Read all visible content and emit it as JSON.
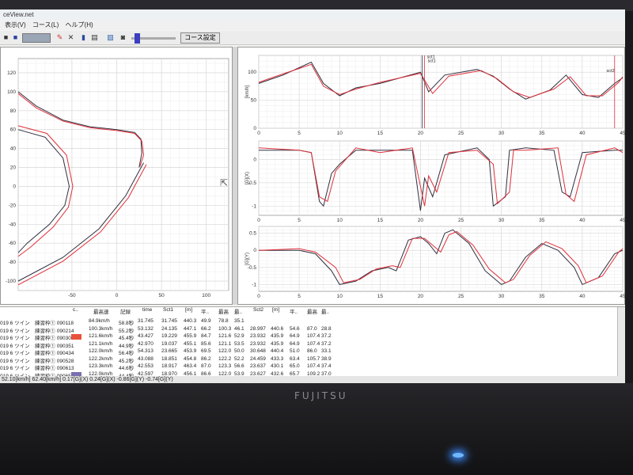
{
  "window": {
    "title": "ceView.net"
  },
  "menu": [
    "表示(V)",
    "コース(L)",
    "ヘルプ(H)",
    ""
  ],
  "toolbar": {
    "course_button": "コース設定"
  },
  "brand": "FUJITSU",
  "colors": {
    "lap_a": "#303040",
    "lap_b": "#e0303a",
    "grid": "#d4d4d4",
    "swatch_red": "#e8523a",
    "swatch_purple": "#7a6fb0"
  },
  "status": "52.10[km/h] 62.40[km/h]  0.17[G](X) 0.24[G](X)  -0.86[G](Y) -0.74[G](Y)",
  "table": {
    "headers": [
      "c..",
      "最高速",
      "記録",
      "time",
      "Sct1",
      "[m]",
      "平..",
      "最高",
      "最..",
      "Sct2",
      "[m]",
      "平..",
      "最高",
      "最.."
    ],
    "rows": [
      [
        "019 6 ツイン",
        "練習枠① 090118",
        "",
        "84.9km/h",
        "58.8秒",
        "31.745",
        "31.745",
        "440.3",
        "49.9",
        "78.8",
        "35.1",
        "",
        "",
        "",
        "",
        ""
      ],
      [
        "019 6 ツイン",
        "練習枠① 090214",
        "",
        "100.3km/h",
        "55.2秒",
        "53.132",
        "24.135",
        "447.1",
        "66.2",
        "100.3",
        "46.1",
        "28.997",
        "440.6",
        "54.6",
        "87.0",
        "28.8"
      ],
      [
        "019 6 ツイン",
        "練習枠① 090307",
        "red",
        "121.6km/h",
        "45.4秒",
        "43.427",
        "19.229",
        "455.9",
        "84.7",
        "121.6",
        "52.9",
        "23.932",
        "435.9",
        "64.9",
        "107.4",
        "37.2"
      ],
      [
        "019 6 ツイン",
        "練習枠① 090351",
        "",
        "121.1km/h",
        "44.9秒",
        "42.970",
        "19.037",
        "455.1",
        "85.6",
        "121.1",
        "53.5",
        "23.932",
        "435.9",
        "64.9",
        "107.4",
        "37.2"
      ],
      [
        "019 6 ツイン",
        "練習枠① 090434",
        "",
        "122.0km/h",
        "56.4秒",
        "54.313",
        "23.665",
        "453.9",
        "69.5",
        "122.0",
        "50.0",
        "30.648",
        "440.4",
        "51.0",
        "86.0",
        "33.1"
      ],
      [
        "019 6 ツイン",
        "練習枠① 090528",
        "",
        "122.2km/h",
        "45.2秒",
        "43.088",
        "18.851",
        "454.8",
        "86.2",
        "122.2",
        "52.2",
        "24.459",
        "433.3",
        "63.4",
        "105.7",
        "38.9"
      ],
      [
        "019 6 ツイン",
        "練習枠① 090613",
        "",
        "123.3km/h",
        "44.6秒",
        "42.553",
        "18.917",
        "463.4",
        "87.0",
        "123.3",
        "56.6",
        "23.637",
        "430.1",
        "65.0",
        "107.4",
        "37.4"
      ],
      [
        "019 6 ツイン",
        "練習枠① 090654",
        "purple",
        "122.0km/h",
        "44.4秒",
        "42.597",
        "18.970",
        "456.1",
        "86.6",
        "122.0",
        "53.9",
        "23.627",
        "432.6",
        "65.7",
        "109.2",
        "37.0"
      ]
    ]
  },
  "chart_data": [
    {
      "type": "line",
      "title": "",
      "xlabel": "",
      "ylabel": "",
      "xlim": [
        -110,
        125
      ],
      "ylim": [
        -110,
        135
      ],
      "x_ticks": [
        -50,
        0,
        50,
        100
      ],
      "y_ticks": [
        -100,
        -80,
        -60,
        -40,
        -20,
        0,
        20,
        40,
        60,
        80,
        100,
        120
      ],
      "series": [
        {
          "x": [
            -110,
            -90,
            -60,
            -30,
            0,
            20,
            27,
            28,
            25
          ],
          "y": [
            100,
            85,
            70,
            63,
            60,
            57,
            50,
            35,
            20
          ]
        },
        {
          "x": [
            -110,
            -90,
            -60,
            -30,
            0,
            20,
            28,
            30,
            26
          ],
          "y": [
            98,
            83,
            69,
            62,
            59,
            56,
            48,
            33,
            21
          ]
        },
        {
          "x": [
            -110,
            -80,
            -60,
            -53,
            -58,
            -75,
            -100,
            -110
          ],
          "y": [
            60,
            52,
            30,
            0,
            -20,
            -40,
            -60,
            -70
          ]
        },
        {
          "x": [
            -110,
            -78,
            -56,
            -49,
            -54,
            -71,
            -96,
            -110
          ],
          "y": [
            64,
            56,
            33,
            0,
            -22,
            -43,
            -64,
            -74
          ]
        },
        {
          "x": [
            -110,
            -60,
            -20,
            10,
            30
          ],
          "y": [
            -100,
            -75,
            -45,
            -10,
            25
          ]
        },
        {
          "x": [
            -110,
            -60,
            -18,
            13,
            33
          ],
          "y": [
            -104,
            -79,
            -48,
            -12,
            23
          ]
        }
      ]
    },
    {
      "type": "line",
      "title": "",
      "xlabel": "",
      "ylabel": "[km/h]",
      "xlim": [
        0,
        45
      ],
      "ylim": [
        0,
        130
      ],
      "y_ticks": [
        0,
        50,
        100
      ],
      "x_ticks": [
        0,
        5,
        10,
        15,
        20,
        25,
        30,
        35,
        40,
        45
      ],
      "annotations": [
        "sct1",
        "sct1",
        "sct2"
      ],
      "series": [
        {
          "x": [
            0,
            3,
            6.5,
            8,
            10,
            12,
            15,
            20,
            21,
            23,
            25,
            27,
            29,
            31,
            33,
            36,
            38,
            40,
            42,
            44,
            45
          ],
          "y": [
            80,
            95,
            118,
            80,
            58,
            72,
            80,
            100,
            65,
            95,
            100,
            105,
            93,
            70,
            52,
            68,
            95,
            60,
            55,
            80,
            90
          ]
        },
        {
          "x": [
            0,
            3,
            6.5,
            8,
            10,
            12,
            15,
            20,
            21.5,
            23.5,
            25.5,
            27.5,
            29.5,
            31.5,
            33.5,
            36.5,
            38.5,
            40.5,
            42.5,
            44.5,
            45
          ],
          "y": [
            82,
            97,
            114,
            75,
            60,
            70,
            82,
            98,
            62,
            93,
            98,
            103,
            88,
            65,
            55,
            70,
            92,
            58,
            58,
            82,
            92
          ]
        }
      ]
    },
    {
      "type": "line",
      "title": "",
      "xlabel": "",
      "ylabel": "[G](X)",
      "xlim": [
        0,
        45
      ],
      "ylim": [
        -1.2,
        0.4
      ],
      "y_ticks": [
        -1,
        -0.5,
        0
      ],
      "x_ticks": [
        0,
        5,
        10,
        15,
        20,
        25,
        30,
        35,
        40,
        45
      ],
      "series": [
        {
          "x": [
            0,
            5,
            6.5,
            7.5,
            8,
            9,
            10,
            12,
            15,
            19,
            20,
            20.5,
            21.5,
            23,
            27,
            28.5,
            29,
            30.5,
            31,
            33,
            36.5,
            37.5,
            38.5,
            40,
            44,
            45
          ],
          "y": [
            0.2,
            0.2,
            0.15,
            -0.9,
            -1.0,
            -0.3,
            -0.1,
            0.2,
            0.2,
            0.2,
            -1.1,
            -0.4,
            -0.8,
            0.1,
            0.25,
            0.0,
            -1.0,
            -0.8,
            0.2,
            0.25,
            0.2,
            -0.7,
            -0.8,
            0.15,
            0.2,
            0.2
          ]
        },
        {
          "x": [
            0,
            5,
            6.5,
            7.5,
            8.5,
            9.5,
            10.5,
            12,
            15,
            19,
            20.5,
            21,
            22,
            23.5,
            27,
            29,
            29.5,
            31,
            31.5,
            33,
            37,
            38,
            39,
            40.5,
            44,
            45
          ],
          "y": [
            0.25,
            0.2,
            0.15,
            -0.8,
            -0.9,
            -0.25,
            -0.05,
            0.25,
            0.15,
            0.25,
            -1.0,
            -0.35,
            -0.7,
            0.15,
            0.2,
            -0.1,
            -0.95,
            -0.7,
            0.2,
            0.2,
            0.25,
            -0.75,
            -0.9,
            0.1,
            0.25,
            0.15
          ]
        }
      ]
    },
    {
      "type": "line",
      "title": "",
      "xlabel": "",
      "ylabel": "[G](Y)",
      "xlim": [
        0,
        45
      ],
      "ylim": [
        -1.2,
        0.7
      ],
      "y_ticks": [
        -1,
        -0.5,
        0,
        0.5
      ],
      "x_ticks": [
        0,
        5,
        10,
        15,
        20,
        25,
        30,
        35,
        40,
        45
      ],
      "series": [
        {
          "x": [
            0,
            5,
            7,
            9,
            10,
            12,
            14,
            16,
            17,
            18.5,
            20,
            21,
            22,
            23,
            24,
            26,
            28,
            30,
            31,
            33,
            35,
            37,
            39,
            40,
            42,
            44,
            45
          ],
          "y": [
            0,
            0,
            -0.1,
            -0.6,
            -1.0,
            -0.9,
            -0.6,
            -0.5,
            -0.6,
            0.3,
            0.4,
            0.2,
            -0.1,
            0.5,
            0.6,
            0.2,
            -0.6,
            -1.0,
            -0.9,
            -0.2,
            0.2,
            0.0,
            -0.5,
            -1.0,
            -0.8,
            -0.1,
            0.0
          ]
        },
        {
          "x": [
            0,
            5,
            7,
            9.5,
            10.5,
            12.5,
            14.5,
            16.5,
            17.5,
            19,
            20.5,
            21.5,
            22.5,
            23.5,
            24.5,
            26.5,
            28.5,
            30.5,
            31.5,
            33.5,
            35.5,
            37.5,
            39.5,
            40.5,
            42.5,
            44.5,
            45
          ],
          "y": [
            0,
            0.05,
            -0.05,
            -0.5,
            -0.95,
            -0.85,
            -0.55,
            -0.45,
            -0.5,
            0.35,
            0.35,
            0.15,
            -0.05,
            0.45,
            0.55,
            0.15,
            -0.55,
            -0.95,
            -0.85,
            -0.15,
            0.25,
            0.05,
            -0.45,
            -0.95,
            -0.75,
            -0.05,
            0.05
          ]
        }
      ]
    }
  ]
}
